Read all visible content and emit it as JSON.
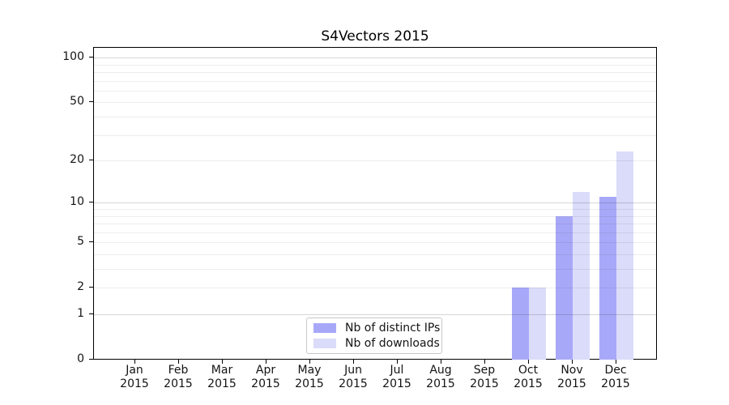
{
  "title": "S4Vectors 2015",
  "chart_data": {
    "type": "bar",
    "title": "S4Vectors 2015",
    "categories": [
      "Jan",
      "Feb",
      "Mar",
      "Apr",
      "May",
      "Jun",
      "Jul",
      "Aug",
      "Sep",
      "Oct",
      "Nov",
      "Dec"
    ],
    "category_year": "2015",
    "series": [
      {
        "name": "Nb of distinct IPs",
        "color": "#a8a8f8",
        "values": [
          0,
          0,
          0,
          0,
          0,
          0,
          0,
          0,
          0,
          2,
          8,
          11
        ]
      },
      {
        "name": "Nb of downloads",
        "color": "#dbdbfa",
        "values": [
          0,
          0,
          0,
          0,
          0,
          0,
          0,
          0,
          0,
          2,
          12,
          23
        ]
      }
    ],
    "y_scale": "log10(1+value)",
    "y_axis": {
      "tick_values": [
        0,
        1,
        2,
        5,
        10,
        20,
        50,
        100
      ],
      "major_grid_values": [
        1,
        10,
        100
      ],
      "minor_grid_values": [
        2,
        3,
        4,
        5,
        6,
        7,
        8,
        9,
        20,
        30,
        40,
        50,
        60,
        70,
        80,
        90
      ],
      "range_top_value": 117
    },
    "legend": {
      "position": "bottom-center",
      "entries": [
        "Nb of distinct IPs",
        "Nb of downloads"
      ]
    },
    "grid": true,
    "colors": {
      "grid_minor": "rgba(0,0,0,0.07)",
      "grid_major": "rgba(0,0,0,0.16)",
      "axis": "#000000",
      "text": "#141414",
      "background": "#ffffff"
    }
  }
}
